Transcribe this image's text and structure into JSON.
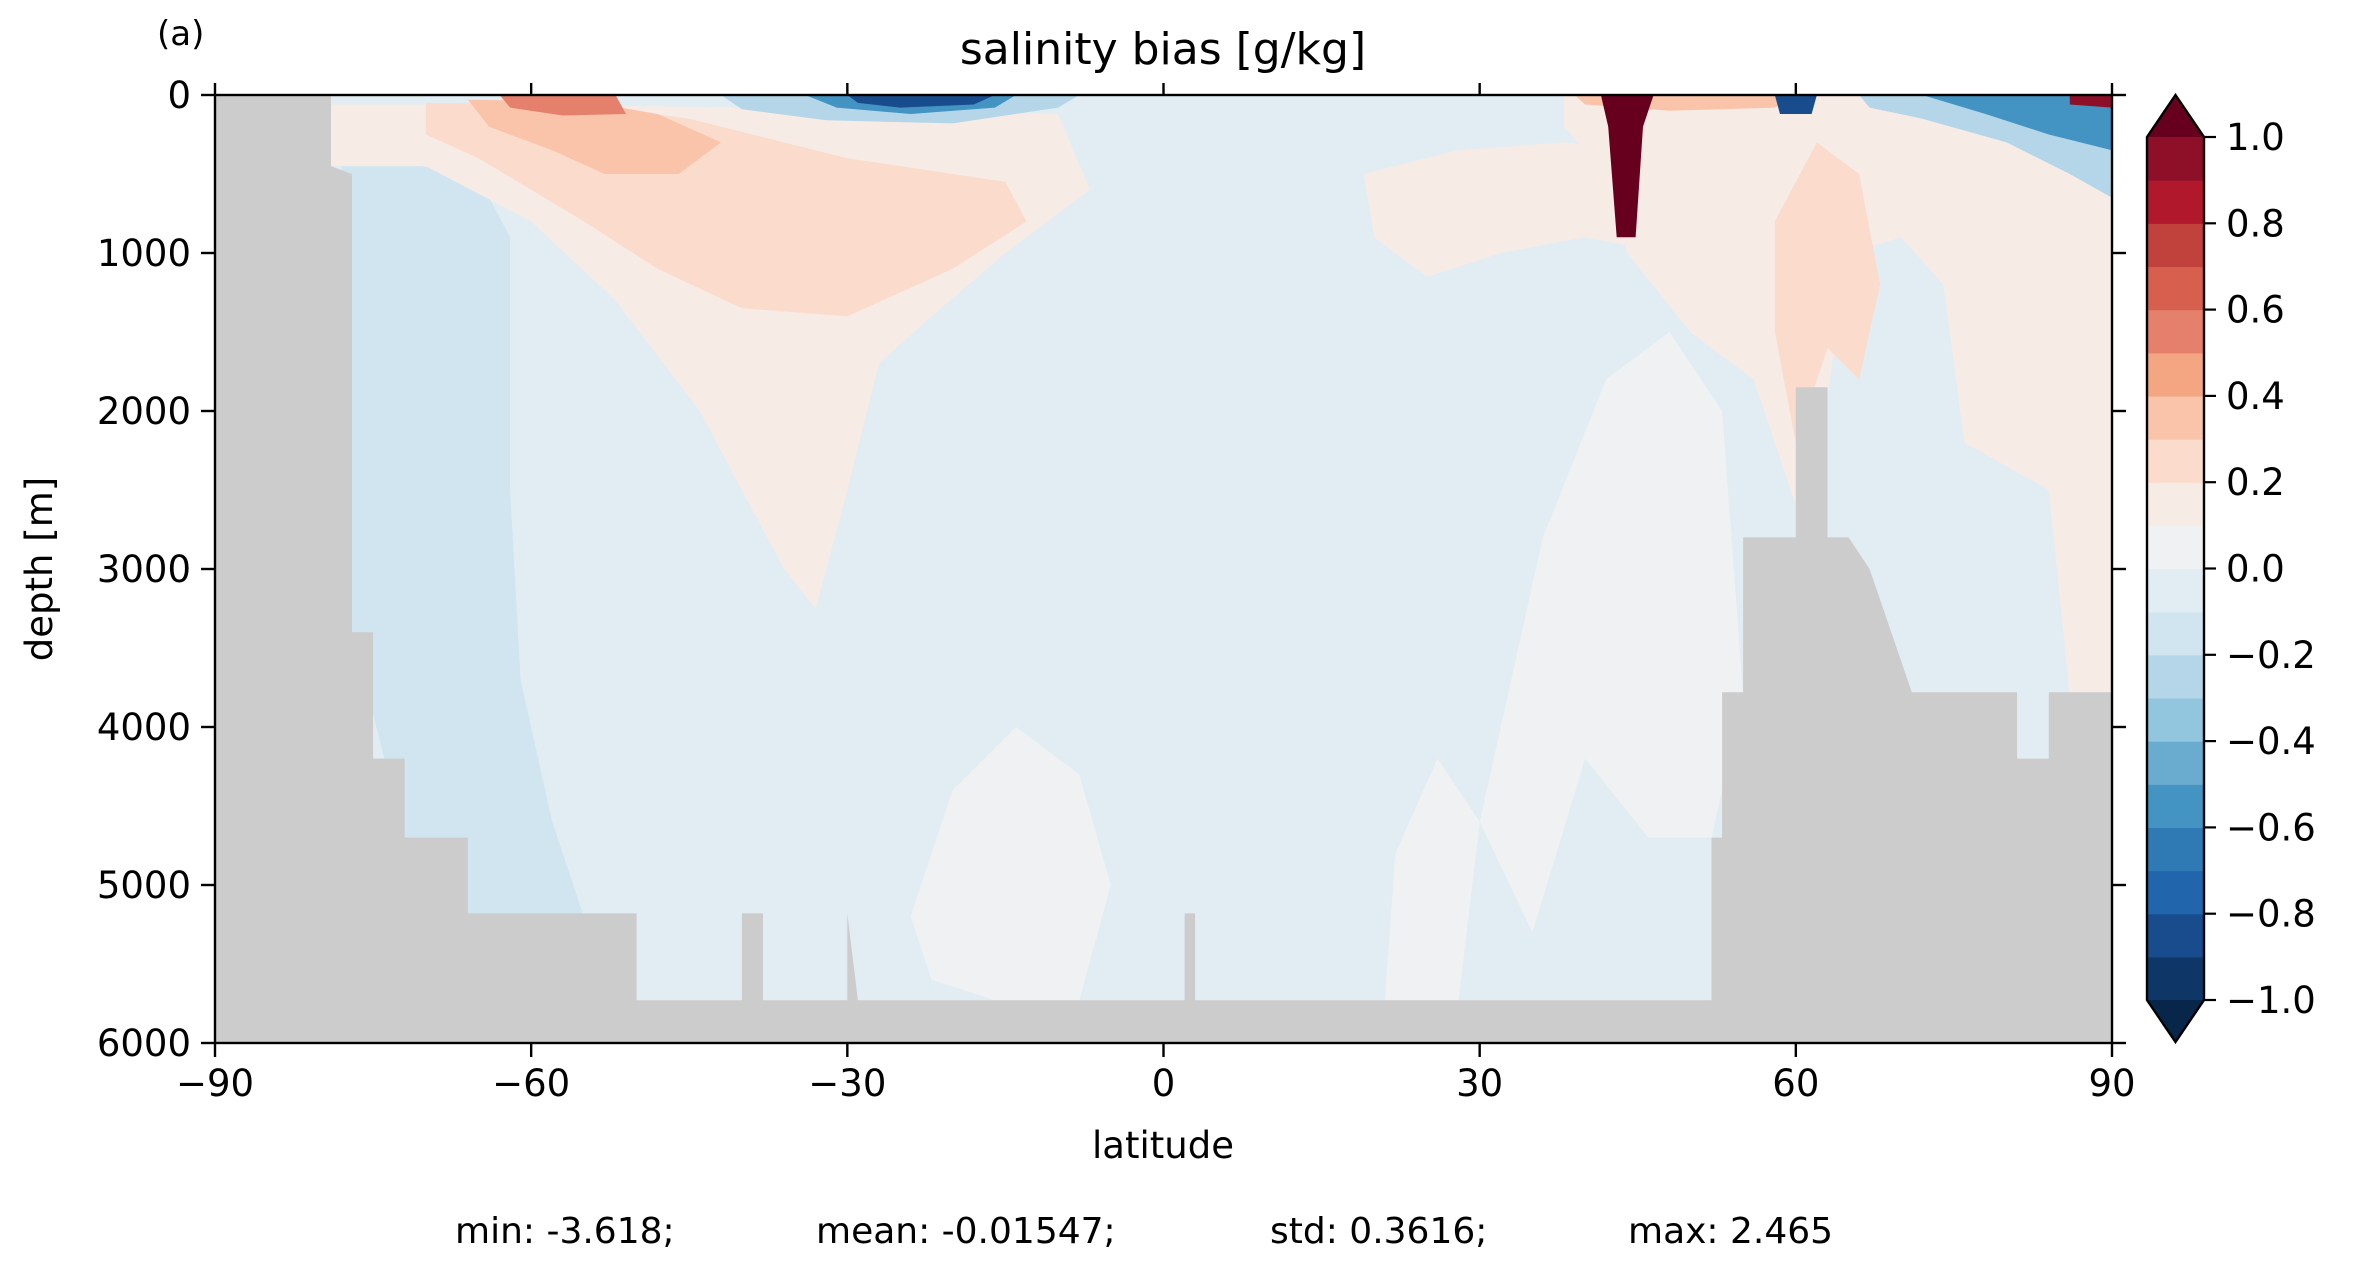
{
  "panel_label": "(a)",
  "chart_data": {
    "type": "contour",
    "title": "salinity bias [g/kg]",
    "xlabel": "latitude",
    "ylabel": "depth [m]",
    "xlim": [
      -90,
      90
    ],
    "ylim": [
      6000,
      0
    ],
    "y_inverted": true,
    "xticks": [
      -90,
      -60,
      -30,
      0,
      30,
      60,
      90
    ],
    "xtick_labels": [
      "−90",
      "−60",
      "−30",
      "0",
      "30",
      "60",
      "90"
    ],
    "yticks": [
      0,
      1000,
      2000,
      3000,
      4000,
      5000,
      6000
    ],
    "ytick_labels": [
      "0",
      "1000",
      "2000",
      "3000",
      "4000",
      "5000",
      "6000"
    ],
    "colorbar": {
      "levels": [
        -1.0,
        -0.9,
        -0.8,
        -0.7,
        -0.6,
        -0.5,
        -0.4,
        -0.3,
        -0.2,
        -0.1,
        0.0,
        0.1,
        0.2,
        0.3,
        0.4,
        0.5,
        0.6,
        0.7,
        0.8,
        0.9,
        1.0
      ],
      "ticks": [
        -1.0,
        -0.8,
        -0.6,
        -0.4,
        -0.2,
        0.0,
        0.2,
        0.4,
        0.6,
        0.8,
        1.0
      ],
      "tick_labels": [
        "−1.0",
        "−0.8",
        "−0.6",
        "−0.4",
        "−0.2",
        "0.0",
        "0.2",
        "0.4",
        "0.6",
        "0.8",
        "1.0"
      ],
      "colormap": "RdBu_r",
      "extend": "both",
      "colors": [
        "#0e3767",
        "#184c8c",
        "#2166ac",
        "#2f79b5",
        "#4393c3",
        "#6aacd0",
        "#92c5de",
        "#b4d6e8",
        "#d1e5f0",
        "#e2edf3",
        "#f0f1f2",
        "#f7ebe6",
        "#fbdbcb",
        "#f9c4a9",
        "#f4a582",
        "#e4806b",
        "#d6604d",
        "#c1413d",
        "#b2182b",
        "#8d1028"
      ],
      "under_color": "#08264a",
      "over_color": "#67001f"
    },
    "land_color": "#cccccc",
    "bathymetry": {
      "lat": [
        -90,
        -79,
        -79,
        -77,
        -77,
        -75,
        -75,
        -72,
        -72,
        -66,
        -66,
        -50,
        -50,
        -40,
        -40,
        -38,
        -38,
        -30,
        -30,
        -29,
        -29,
        2,
        2,
        3,
        3,
        52,
        52,
        53,
        53,
        55,
        55,
        60,
        60,
        63,
        63,
        65,
        65,
        67,
        67,
        71,
        71,
        73,
        73,
        81,
        81,
        84,
        84,
        86,
        86,
        90
      ],
      "depth": [
        0,
        0,
        450,
        500,
        3400,
        3400,
        4200,
        4200,
        4700,
        4700,
        5180,
        5180,
        5730,
        5730,
        5180,
        5180,
        5730,
        5730,
        5180,
        5730,
        5730,
        5730,
        5180,
        5180,
        5730,
        5730,
        4700,
        4700,
        3780,
        3780,
        2800,
        2800,
        1850,
        1850,
        2800,
        2800,
        2800,
        3000,
        3000,
        3780,
        3780,
        3780,
        3780,
        3780,
        4200,
        4200,
        3780,
        3780,
        3780,
        3780
      ]
    },
    "regions": [
      {
        "name": "deep_background",
        "value": -0.05,
        "points": [
          [
            -90,
            0
          ],
          [
            90,
            0
          ],
          [
            90,
            6000
          ],
          [
            -90,
            6000
          ]
        ]
      },
      {
        "name": "southern_deep_fresh",
        "value": -0.15,
        "points": [
          [
            -79,
            400
          ],
          [
            -72,
            430
          ],
          [
            -65,
            520
          ],
          [
            -62,
            900
          ],
          [
            -62,
            2500
          ],
          [
            -61,
            3700
          ],
          [
            -58,
            4600
          ],
          [
            -55,
            5200
          ],
          [
            -66,
            5200
          ],
          [
            -72,
            4700
          ],
          [
            -77,
            3400
          ],
          [
            -78,
            450
          ]
        ]
      },
      {
        "name": "south_atlantic_intermediate_salty",
        "value": 0.15,
        "points": [
          [
            -79,
            60
          ],
          [
            -60,
            60
          ],
          [
            -40,
            80
          ],
          [
            -10,
            120
          ],
          [
            -7,
            600
          ],
          [
            -15,
            1000
          ],
          [
            -22,
            1400
          ],
          [
            -27,
            1700
          ],
          [
            -30,
            2500
          ],
          [
            -33,
            3250
          ],
          [
            -36,
            3000
          ],
          [
            -40,
            2500
          ],
          [
            -44,
            2000
          ],
          [
            -52,
            1300
          ],
          [
            -60,
            800
          ],
          [
            -70,
            450
          ],
          [
            -79,
            450
          ]
        ]
      },
      {
        "name": "southern_salty_core",
        "value": 0.25,
        "points": [
          [
            -70,
            50
          ],
          [
            -55,
            60
          ],
          [
            -45,
            150
          ],
          [
            -30,
            400
          ],
          [
            -15,
            550
          ],
          [
            -13,
            800
          ],
          [
            -20,
            1100
          ],
          [
            -30,
            1400
          ],
          [
            -40,
            1350
          ],
          [
            -48,
            1100
          ],
          [
            -55,
            800
          ],
          [
            -60,
            600
          ],
          [
            -65,
            400
          ],
          [
            -70,
            250
          ]
        ]
      },
      {
        "name": "southern_salty_inner",
        "value": 0.35,
        "points": [
          [
            -66,
            30
          ],
          [
            -55,
            40
          ],
          [
            -48,
            120
          ],
          [
            -42,
            300
          ],
          [
            -46,
            500
          ],
          [
            -53,
            500
          ],
          [
            -58,
            350
          ],
          [
            -64,
            200
          ]
        ]
      },
      {
        "name": "southern_surface_max",
        "value": 0.55,
        "points": [
          [
            -63,
            0
          ],
          [
            -52,
            0
          ],
          [
            -51,
            120
          ],
          [
            -57,
            130
          ],
          [
            -62,
            80
          ]
        ]
      },
      {
        "name": "subtropical_surface_fresh",
        "value": -0.3,
        "points": [
          [
            -42,
            0
          ],
          [
            -8,
            0
          ],
          [
            -10,
            80
          ],
          [
            -20,
            180
          ],
          [
            -32,
            160
          ],
          [
            -40,
            90
          ]
        ]
      },
      {
        "name": "subtropical_surface_fresh_inner",
        "value": -0.6,
        "points": [
          [
            -34,
            0
          ],
          [
            -14,
            0
          ],
          [
            -16,
            80
          ],
          [
            -24,
            120
          ],
          [
            -31,
            80
          ]
        ]
      },
      {
        "name": "subtropical_fresh_core",
        "value": -0.85,
        "points": [
          [
            -30,
            0
          ],
          [
            -16,
            0
          ],
          [
            -18,
            60
          ],
          [
            -25,
            80
          ],
          [
            -29,
            50
          ]
        ]
      },
      {
        "name": "north_intermediate_salty",
        "value": 0.12,
        "points": [
          [
            19,
            500
          ],
          [
            28,
            350
          ],
          [
            38,
            300
          ],
          [
            45,
            350
          ],
          [
            50,
            500
          ],
          [
            52,
            900
          ],
          [
            48,
            1000
          ],
          [
            40,
            900
          ],
          [
            32,
            1000
          ],
          [
            25,
            1150
          ],
          [
            20,
            900
          ]
        ]
      },
      {
        "name": "north_atlantic_salty",
        "value": 0.15,
        "points": [
          [
            38,
            0
          ],
          [
            90,
            0
          ],
          [
            90,
            3800
          ],
          [
            86,
            3800
          ],
          [
            84,
            2500
          ],
          [
            76,
            2200
          ],
          [
            74,
            1200
          ],
          [
            70,
            900
          ],
          [
            65,
            1000
          ],
          [
            63,
            1900
          ],
          [
            60,
            2600
          ],
          [
            56,
            1800
          ],
          [
            50,
            1500
          ],
          [
            44,
            1000
          ],
          [
            42,
            500
          ],
          [
            38,
            200
          ]
        ]
      },
      {
        "name": "mid_atlantic_salty_tongue",
        "value": 0.08,
        "points": [
          [
            30,
            4600
          ],
          [
            36,
            2800
          ],
          [
            42,
            1800
          ],
          [
            48,
            1500
          ],
          [
            53,
            2000
          ],
          [
            55,
            3800
          ],
          [
            52,
            4700
          ],
          [
            46,
            4700
          ],
          [
            40,
            4200
          ],
          [
            35,
            5300
          ]
        ]
      },
      {
        "name": "equatorial_deep_salty",
        "value": 0.08,
        "points": [
          [
            -24,
            5200
          ],
          [
            -20,
            4400
          ],
          [
            -14,
            4000
          ],
          [
            -8,
            4300
          ],
          [
            -5,
            5000
          ],
          [
            -8,
            5730
          ],
          [
            -16,
            5730
          ],
          [
            -22,
            5600
          ]
        ]
      },
      {
        "name": "east_deep_salty",
        "value": 0.08,
        "points": [
          [
            21,
            5730
          ],
          [
            22,
            4800
          ],
          [
            26,
            4200
          ],
          [
            30,
            4600
          ],
          [
            28,
            5730
          ]
        ]
      },
      {
        "name": "subpolar_salty",
        "value": 0.25,
        "points": [
          [
            58,
            800
          ],
          [
            62,
            300
          ],
          [
            66,
            500
          ],
          [
            68,
            1200
          ],
          [
            66,
            1800
          ],
          [
            63,
            1600
          ],
          [
            60,
            2200
          ],
          [
            58,
            1500
          ]
        ]
      },
      {
        "name": "north_surface_salty",
        "value": 0.35,
        "points": [
          [
            39,
            0
          ],
          [
            60,
            0
          ],
          [
            58,
            80
          ],
          [
            48,
            100
          ],
          [
            40,
            60
          ]
        ]
      },
      {
        "name": "arctic_surface_fresh",
        "value": -0.3,
        "points": [
          [
            66,
            0
          ],
          [
            90,
            0
          ],
          [
            90,
            650
          ],
          [
            86,
            500
          ],
          [
            80,
            300
          ],
          [
            72,
            150
          ],
          [
            67,
            80
          ]
        ]
      },
      {
        "name": "arctic_surface_fresh_inner",
        "value": -0.6,
        "points": [
          [
            72,
            0
          ],
          [
            90,
            0
          ],
          [
            90,
            350
          ],
          [
            84,
            250
          ],
          [
            78,
            120
          ]
        ]
      },
      {
        "name": "subpolar_fresh_spot",
        "value": -0.9,
        "points": [
          [
            58,
            0
          ],
          [
            62,
            0
          ],
          [
            61.5,
            120
          ],
          [
            58.5,
            120
          ]
        ]
      },
      {
        "name": "mediterranean_outflow",
        "value": 1.2,
        "points": [
          [
            41.5,
            0
          ],
          [
            46.5,
            0
          ],
          [
            45.5,
            200
          ],
          [
            44.8,
            900
          ],
          [
            43,
            900
          ],
          [
            42.2,
            200
          ]
        ]
      },
      {
        "name": "arctic_surface_salty_spot",
        "value": 0.9,
        "points": [
          [
            86,
            0
          ],
          [
            90,
            0
          ],
          [
            90,
            80
          ],
          [
            86,
            60
          ]
        ]
      }
    ],
    "stats": {
      "min": -3.618,
      "mean": -0.01547,
      "std": 0.3616,
      "max": 2.465
    }
  },
  "footer": {
    "min": "min: -3.618;",
    "mean": "mean: -0.01547;",
    "std": "std: 0.3616;",
    "max": "max: 2.465"
  }
}
